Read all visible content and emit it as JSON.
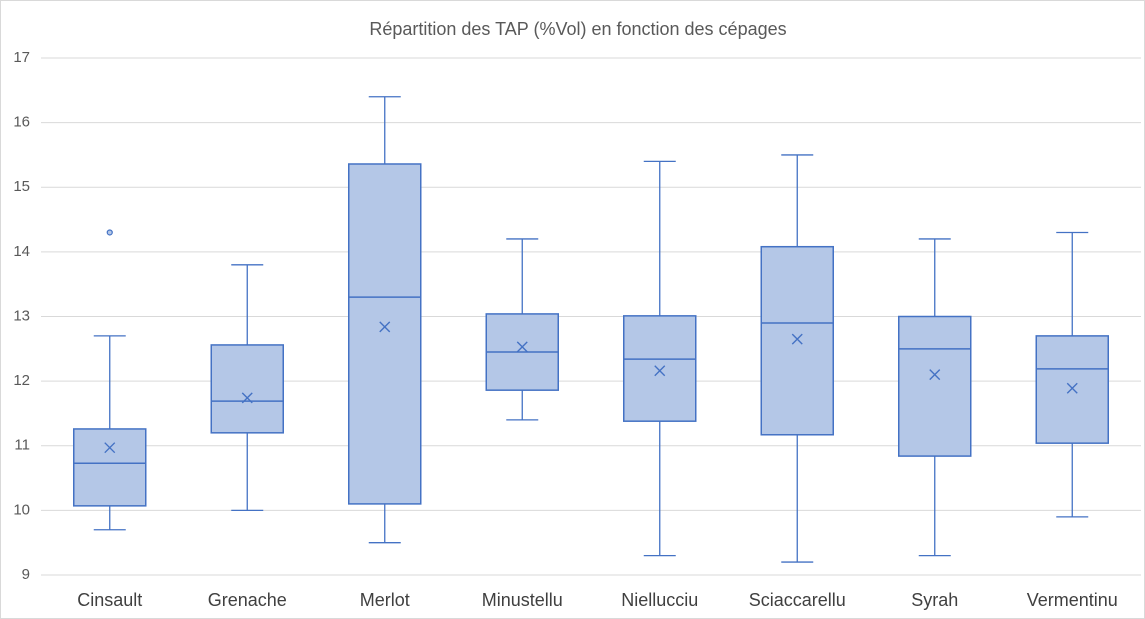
{
  "chart_data": {
    "type": "box",
    "title": "Répartition des TAP (%Vol) en fonction des cépages",
    "categories": [
      "Cinsault",
      "Grenache",
      "Merlot",
      "Minustellu",
      "Niellucciu",
      "Sciaccarellu",
      "Syrah",
      "Vermentinu"
    ],
    "min": [
      9.7,
      10.0,
      9.5,
      11.4,
      9.3,
      9.2,
      9.3,
      9.9
    ],
    "q1": [
      10.07,
      11.2,
      10.1,
      11.86,
      11.38,
      11.17,
      10.84,
      11.04
    ],
    "median": [
      10.73,
      11.69,
      13.3,
      12.45,
      12.34,
      12.9,
      12.5,
      12.19
    ],
    "q3": [
      11.26,
      12.56,
      15.36,
      13.04,
      13.01,
      14.08,
      13.0,
      12.7
    ],
    "max": [
      12.7,
      13.8,
      16.4,
      14.2,
      15.4,
      15.5,
      14.2,
      14.3
    ],
    "mean": [
      10.97,
      11.74,
      12.84,
      12.53,
      12.16,
      12.65,
      12.1,
      11.89
    ],
    "outliers": [
      [
        14.3
      ],
      [],
      [],
      [],
      [],
      [],
      [],
      []
    ],
    "color": "#4472c4",
    "fill": "#b4c7e7",
    "ylim": [
      9,
      17
    ],
    "yticks": [
      9,
      10,
      11,
      12,
      13,
      14,
      15,
      16,
      17
    ],
    "grid": true
  }
}
